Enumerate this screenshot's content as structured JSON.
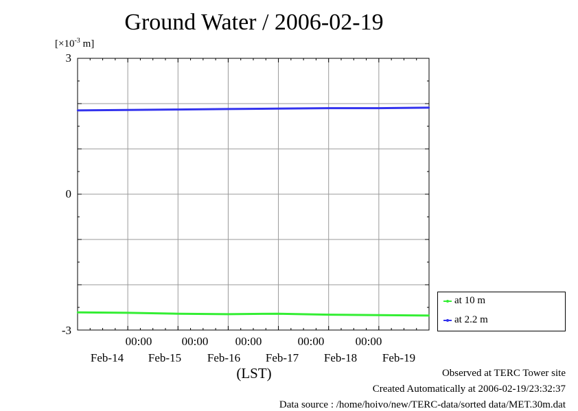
{
  "chart_data": {
    "type": "line",
    "title": "Ground Water / 2006-02-19",
    "y_unit_label": "[×10",
    "y_unit_exp": "-3",
    "y_unit_suffix": " m]",
    "xlabel": "(LST)",
    "ylim": [
      -3,
      3
    ],
    "y_ticks": [
      "3",
      "0",
      "-3"
    ],
    "x_range": [
      "2006-02-13T00:00",
      "2006-02-20T00:00"
    ],
    "x_ticks": [
      {
        "time": "00:00",
        "date": "Feb-14"
      },
      {
        "time": "00:00",
        "date": "Feb-15"
      },
      {
        "time": "00:00",
        "date": "Feb-16"
      },
      {
        "time": "00:00",
        "date": "Feb-17"
      },
      {
        "time": "00:00",
        "date": "Feb-18"
      },
      {
        "time": "",
        "date": "Feb-19"
      }
    ],
    "grid": true,
    "legend_position": "bottom-right outside",
    "series": [
      {
        "name": "at 10 m",
        "color": "#33ee33",
        "x": [
          "2006-02-13T00:00",
          "2006-02-14T00:00",
          "2006-02-15T00:00",
          "2006-02-16T00:00",
          "2006-02-17T00:00",
          "2006-02-18T00:00",
          "2006-02-19T00:00",
          "2006-02-20T00:00"
        ],
        "values": [
          -2.61,
          -2.62,
          -2.64,
          -2.65,
          -2.64,
          -2.66,
          -2.67,
          -2.68
        ]
      },
      {
        "name": "at 2.2 m",
        "color": "#3333ee",
        "x": [
          "2006-02-13T00:00",
          "2006-02-14T00:00",
          "2006-02-15T00:00",
          "2006-02-16T00:00",
          "2006-02-17T00:00",
          "2006-02-18T00:00",
          "2006-02-19T00:00",
          "2006-02-20T00:00"
        ],
        "values": [
          1.85,
          1.86,
          1.87,
          1.88,
          1.89,
          1.9,
          1.9,
          1.91
        ]
      }
    ]
  },
  "footer": {
    "observed": "Observed at TERC Tower site",
    "created": "Created Automatically at 2006-02-19/23:32:37",
    "source": "Data source : /home/hoivo/new/TERC-data/sorted  data/MET.30m.dat"
  }
}
